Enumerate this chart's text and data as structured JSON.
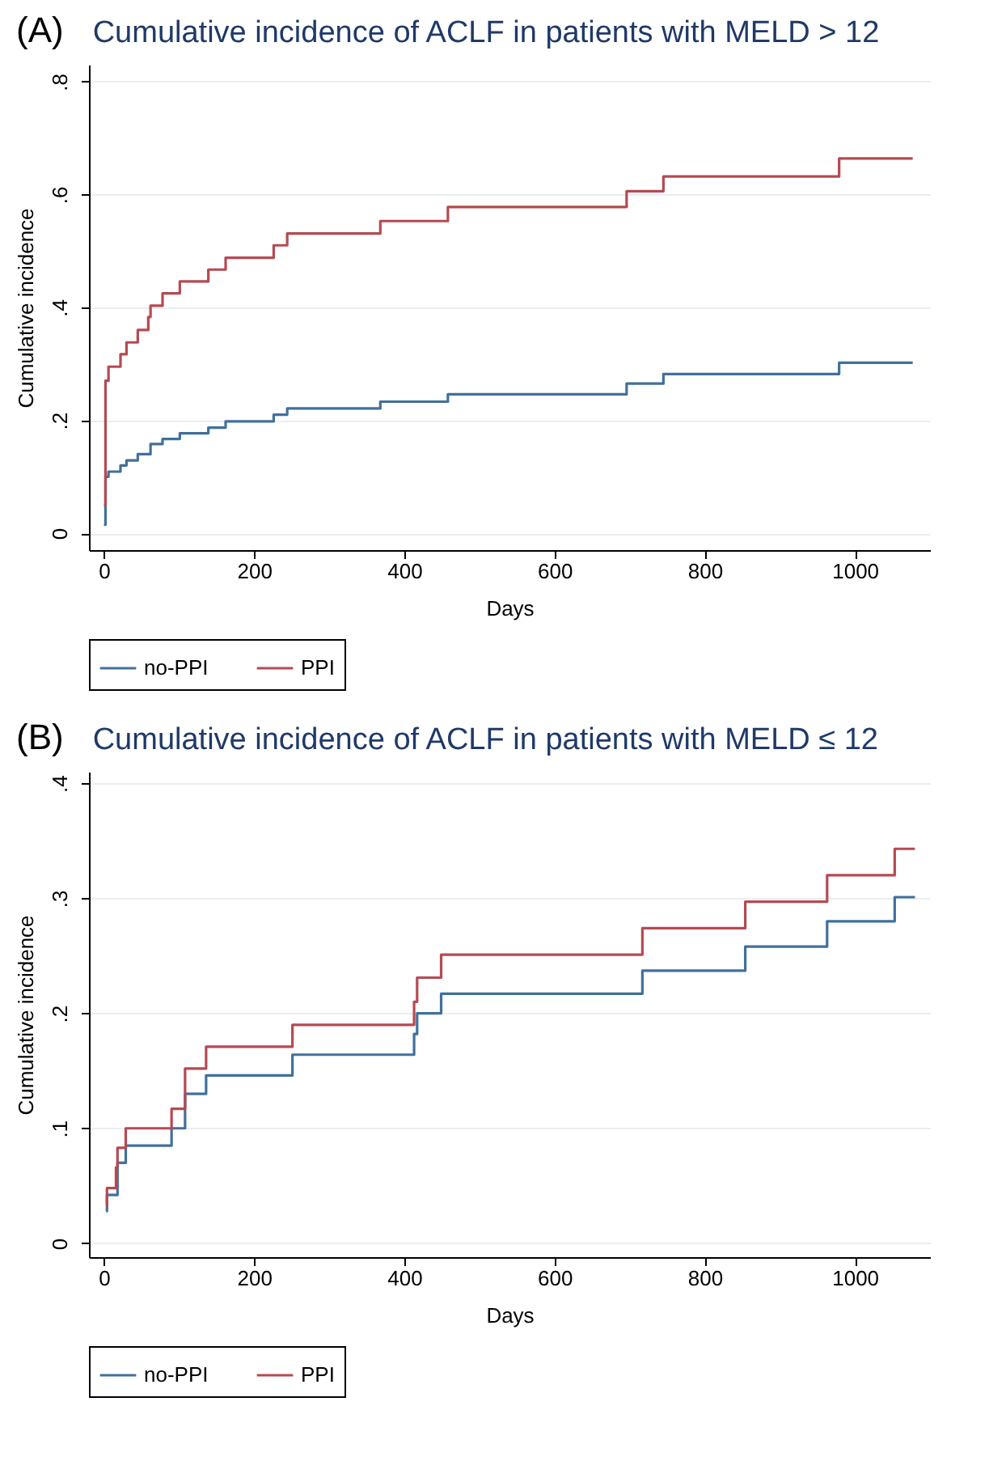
{
  "chart_data": [
    {
      "type": "step",
      "title": "Cumulative incidence of ACLF in patients with MELD > 12",
      "annotations": [
        "(A)"
      ],
      "xlabel": "Days",
      "ylabel": "Cumulative incidence",
      "xlim": [
        -20,
        1100
      ],
      "xticks": [
        0,
        200,
        400,
        600,
        800,
        1000
      ],
      "ylim": [
        -0.03,
        0.83
      ],
      "yticks": [
        {
          "value": 0,
          "label": "0"
        },
        {
          "value": 0.2,
          "label": ".2"
        },
        {
          "value": 0.4,
          "label": ".4"
        },
        {
          "value": 0.6,
          "label": ".6"
        },
        {
          "value": 0.8,
          "label": ".8"
        }
      ],
      "grid": "y",
      "legend": "bottom",
      "series": [
        {
          "name": "no-PPI",
          "color": "#41709c",
          "x": [
            0,
            2,
            6,
            22,
            30,
            45,
            62,
            78,
            101,
            139,
            162,
            226,
            244,
            368,
            458,
            696,
            745,
            979,
            1077
          ],
          "values": [
            0.015,
            0.1,
            0.109,
            0.12,
            0.129,
            0.14,
            0.158,
            0.167,
            0.177,
            0.187,
            0.198,
            0.21,
            0.221,
            0.233,
            0.246,
            0.265,
            0.282,
            0.302,
            0.302
          ]
        },
        {
          "name": "PPI",
          "color": "#b54a52",
          "x": [
            0,
            2,
            6,
            22,
            30,
            45,
            59,
            62,
            78,
            101,
            139,
            162,
            226,
            244,
            368,
            458,
            696,
            745,
            979,
            1077
          ],
          "values": [
            0.05,
            0.27,
            0.295,
            0.317,
            0.338,
            0.36,
            0.383,
            0.403,
            0.425,
            0.446,
            0.467,
            0.488,
            0.51,
            0.531,
            0.553,
            0.578,
            0.606,
            0.632,
            0.664,
            0.664
          ]
        }
      ]
    },
    {
      "type": "step",
      "title": "Cumulative incidence of ACLF in patients with MELD ≤ 12",
      "annotations": [
        "(B)"
      ],
      "xlabel": "Days",
      "ylabel": "Cumulative incidence",
      "xlim": [
        -20,
        1100
      ],
      "xticks": [
        0,
        200,
        400,
        600,
        800,
        1000
      ],
      "ylim": [
        -0.012,
        0.41
      ],
      "yticks": [
        {
          "value": 0,
          "label": "0"
        },
        {
          "value": 0.1,
          "label": ".1"
        },
        {
          "value": 0.2,
          "label": ".2"
        },
        {
          "value": 0.3,
          "label": ".3"
        },
        {
          "value": 0.4,
          "label": ".4"
        }
      ],
      "grid": "y",
      "legend": "bottom",
      "series": [
        {
          "name": "no-PPI",
          "color": "#41709c",
          "x": [
            3,
            4,
            18,
            29,
            90,
            108,
            136,
            251,
            413,
            417,
            449,
            717,
            854,
            963,
            1053,
            1080
          ],
          "values": [
            0.028,
            0.042,
            0.07,
            0.085,
            0.1,
            0.13,
            0.146,
            0.164,
            0.182,
            0.2,
            0.217,
            0.237,
            0.258,
            0.28,
            0.301,
            0.301
          ]
        },
        {
          "name": "PPI",
          "color": "#b54a52",
          "x": [
            3,
            4,
            16,
            18,
            29,
            90,
            108,
            136,
            251,
            413,
            417,
            449,
            717,
            854,
            963,
            1053,
            1080
          ],
          "values": [
            0.033,
            0.048,
            0.066,
            0.083,
            0.1,
            0.117,
            0.152,
            0.171,
            0.19,
            0.21,
            0.231,
            0.251,
            0.274,
            0.297,
            0.32,
            0.343,
            0.343
          ]
        }
      ]
    }
  ]
}
